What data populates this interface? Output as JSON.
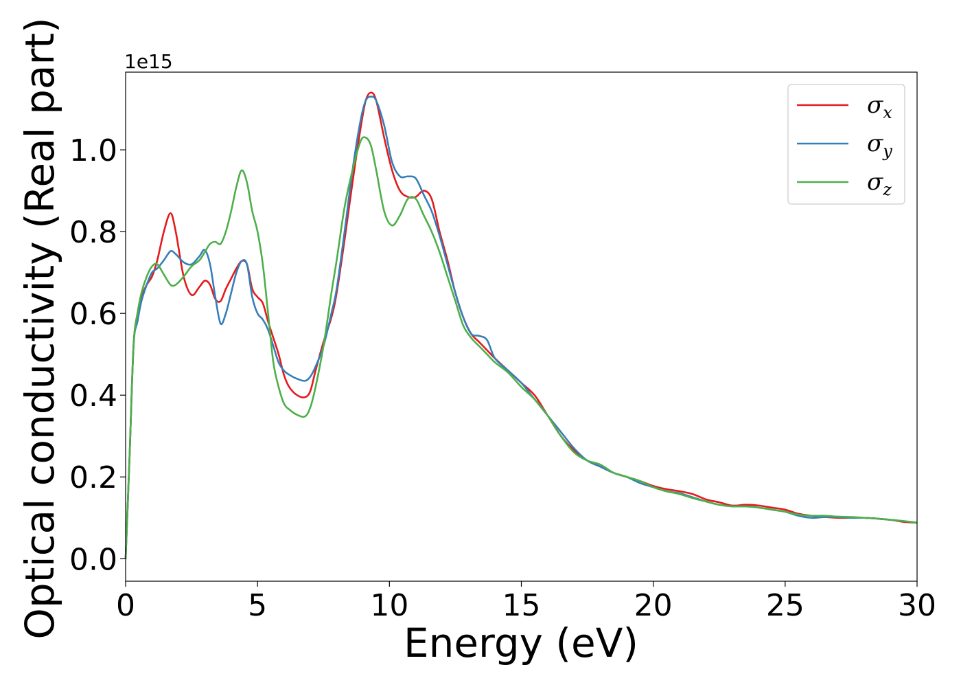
{
  "chart_data": {
    "type": "line",
    "title": "",
    "xlabel": "Energy (eV)",
    "ylabel": "Optical conductivity (Real part)",
    "y_offset_label": "1e15",
    "xlim": [
      0,
      30
    ],
    "ylim": [
      -0.055,
      1.19
    ],
    "xticks": [
      0,
      5,
      10,
      15,
      20,
      25,
      30
    ],
    "xtick_labels": [
      "0",
      "5",
      "10",
      "15",
      "20",
      "25",
      "30"
    ],
    "yticks": [
      0.0,
      0.2,
      0.4,
      0.6,
      0.8,
      1.0
    ],
    "ytick_labels": [
      "0.0",
      "0.2",
      "0.4",
      "0.6",
      "0.8",
      "1.0"
    ],
    "grid": false,
    "legend_position": "top-right",
    "series": [
      {
        "name": "σx",
        "legend_base": "σ",
        "legend_sub": "x",
        "color": "#e41a1c",
        "x": [
          0,
          0.15,
          0.3,
          0.45,
          0.6,
          0.8,
          1.0,
          1.2,
          1.45,
          1.7,
          1.9,
          2.2,
          2.5,
          2.8,
          3.0,
          3.2,
          3.4,
          3.6,
          3.8,
          4.0,
          4.2,
          4.4,
          4.6,
          4.8,
          5.0,
          5.2,
          5.4,
          5.6,
          5.8,
          6.0,
          6.2,
          6.5,
          6.8,
          7.0,
          7.2,
          7.5,
          7.8,
          8.0,
          8.3,
          8.6,
          8.9,
          9.1,
          9.3,
          9.5,
          9.8,
          10.1,
          10.4,
          10.7,
          11.0,
          11.3,
          11.6,
          11.9,
          12.2,
          12.5,
          12.8,
          13.1,
          13.4,
          13.7,
          14.0,
          14.5,
          15.0,
          15.5,
          16.0,
          16.5,
          17.0,
          17.5,
          18.0,
          18.5,
          19.0,
          19.5,
          20.0,
          20.5,
          21.0,
          21.5,
          22.0,
          22.5,
          23.0,
          23.5,
          24.0,
          24.5,
          25.0,
          25.5,
          26.0,
          26.5,
          27.0,
          27.5,
          28.0,
          28.5,
          29.0,
          29.5,
          30.0
        ],
        "values": [
          0.0,
          0.25,
          0.52,
          0.6,
          0.64,
          0.67,
          0.69,
          0.73,
          0.8,
          0.845,
          0.8,
          0.69,
          0.645,
          0.665,
          0.68,
          0.67,
          0.635,
          0.63,
          0.66,
          0.685,
          0.71,
          0.728,
          0.72,
          0.66,
          0.64,
          0.625,
          0.58,
          0.54,
          0.5,
          0.45,
          0.42,
          0.4,
          0.395,
          0.41,
          0.46,
          0.53,
          0.59,
          0.65,
          0.78,
          0.92,
          1.05,
          1.12,
          1.14,
          1.12,
          1.03,
          0.95,
          0.9,
          0.885,
          0.885,
          0.9,
          0.88,
          0.8,
          0.73,
          0.65,
          0.59,
          0.55,
          0.53,
          0.51,
          0.49,
          0.46,
          0.43,
          0.4,
          0.35,
          0.3,
          0.265,
          0.24,
          0.225,
          0.21,
          0.2,
          0.19,
          0.178,
          0.17,
          0.165,
          0.158,
          0.145,
          0.138,
          0.13,
          0.132,
          0.13,
          0.125,
          0.12,
          0.11,
          0.105,
          0.102,
          0.1,
          0.1,
          0.1,
          0.098,
          0.095,
          0.09,
          0.088
        ]
      },
      {
        "name": "σy",
        "legend_base": "σ",
        "legend_sub": "y",
        "color": "#377eb8",
        "x": [
          0,
          0.15,
          0.3,
          0.45,
          0.6,
          0.8,
          1.0,
          1.2,
          1.45,
          1.7,
          1.9,
          2.2,
          2.5,
          2.8,
          3.0,
          3.2,
          3.4,
          3.6,
          3.8,
          4.0,
          4.2,
          4.4,
          4.6,
          4.8,
          5.0,
          5.2,
          5.4,
          5.6,
          5.8,
          6.0,
          6.2,
          6.5,
          6.8,
          7.0,
          7.2,
          7.5,
          7.8,
          8.0,
          8.3,
          8.6,
          8.9,
          9.1,
          9.3,
          9.5,
          9.8,
          10.1,
          10.4,
          10.7,
          11.0,
          11.3,
          11.6,
          11.9,
          12.2,
          12.5,
          12.8,
          13.1,
          13.4,
          13.7,
          14.0,
          14.5,
          15.0,
          15.5,
          16.0,
          16.5,
          17.0,
          17.5,
          18.0,
          18.5,
          19.0,
          19.5,
          20.0,
          20.5,
          21.0,
          21.5,
          22.0,
          22.5,
          23.0,
          23.5,
          24.0,
          24.5,
          25.0,
          25.5,
          26.0,
          26.5,
          27.0,
          27.5,
          28.0,
          28.5,
          29.0,
          29.5,
          30.0
        ],
        "values": [
          0.0,
          0.25,
          0.52,
          0.58,
          0.63,
          0.67,
          0.7,
          0.71,
          0.73,
          0.752,
          0.745,
          0.725,
          0.72,
          0.74,
          0.755,
          0.72,
          0.64,
          0.575,
          0.6,
          0.65,
          0.7,
          0.728,
          0.72,
          0.64,
          0.6,
          0.585,
          0.56,
          0.52,
          0.48,
          0.46,
          0.45,
          0.44,
          0.435,
          0.445,
          0.47,
          0.52,
          0.6,
          0.66,
          0.8,
          0.95,
          1.07,
          1.12,
          1.13,
          1.12,
          1.06,
          0.97,
          0.935,
          0.935,
          0.93,
          0.89,
          0.85,
          0.79,
          0.72,
          0.65,
          0.59,
          0.55,
          0.545,
          0.535,
          0.49,
          0.46,
          0.43,
          0.39,
          0.35,
          0.31,
          0.27,
          0.24,
          0.225,
          0.21,
          0.2,
          0.185,
          0.175,
          0.165,
          0.16,
          0.15,
          0.14,
          0.132,
          0.128,
          0.128,
          0.125,
          0.12,
          0.115,
          0.105,
          0.1,
          0.102,
          0.102,
          0.1,
          0.1,
          0.098,
          0.095,
          0.092,
          0.088
        ]
      },
      {
        "name": "σz",
        "legend_base": "σ",
        "legend_sub": "z",
        "color": "#4daf4a",
        "x": [
          0,
          0.15,
          0.3,
          0.45,
          0.6,
          0.8,
          1.0,
          1.2,
          1.45,
          1.7,
          1.9,
          2.2,
          2.5,
          2.8,
          3.0,
          3.2,
          3.4,
          3.6,
          3.8,
          4.0,
          4.2,
          4.4,
          4.6,
          4.8,
          5.0,
          5.2,
          5.4,
          5.6,
          5.8,
          6.0,
          6.2,
          6.5,
          6.8,
          7.0,
          7.2,
          7.5,
          7.8,
          8.0,
          8.3,
          8.6,
          8.9,
          9.1,
          9.3,
          9.5,
          9.8,
          10.1,
          10.4,
          10.7,
          11.0,
          11.3,
          11.6,
          11.9,
          12.2,
          12.5,
          12.8,
          13.1,
          13.4,
          13.7,
          14.0,
          14.5,
          15.0,
          15.5,
          16.0,
          16.5,
          17.0,
          17.5,
          18.0,
          18.5,
          19.0,
          19.5,
          20.0,
          20.5,
          21.0,
          21.5,
          22.0,
          22.5,
          23.0,
          23.5,
          24.0,
          24.5,
          25.0,
          25.5,
          26.0,
          26.5,
          27.0,
          27.5,
          28.0,
          28.5,
          29.0,
          29.5,
          30.0
        ],
        "values": [
          0.0,
          0.25,
          0.52,
          0.6,
          0.65,
          0.69,
          0.715,
          0.72,
          0.695,
          0.67,
          0.67,
          0.69,
          0.715,
          0.73,
          0.75,
          0.77,
          0.775,
          0.77,
          0.8,
          0.85,
          0.91,
          0.95,
          0.92,
          0.85,
          0.8,
          0.72,
          0.6,
          0.48,
          0.42,
          0.38,
          0.365,
          0.352,
          0.348,
          0.37,
          0.42,
          0.52,
          0.65,
          0.73,
          0.86,
          0.95,
          1.02,
          1.03,
          1.01,
          0.95,
          0.85,
          0.815,
          0.84,
          0.88,
          0.88,
          0.84,
          0.8,
          0.75,
          0.69,
          0.63,
          0.57,
          0.54,
          0.52,
          0.5,
          0.48,
          0.455,
          0.42,
          0.39,
          0.35,
          0.3,
          0.26,
          0.24,
          0.23,
          0.21,
          0.2,
          0.19,
          0.175,
          0.165,
          0.158,
          0.148,
          0.14,
          0.132,
          0.128,
          0.128,
          0.125,
          0.12,
          0.115,
          0.108,
          0.105,
          0.105,
          0.103,
          0.102,
          0.1,
          0.098,
          0.095,
          0.092,
          0.088
        ]
      }
    ]
  }
}
